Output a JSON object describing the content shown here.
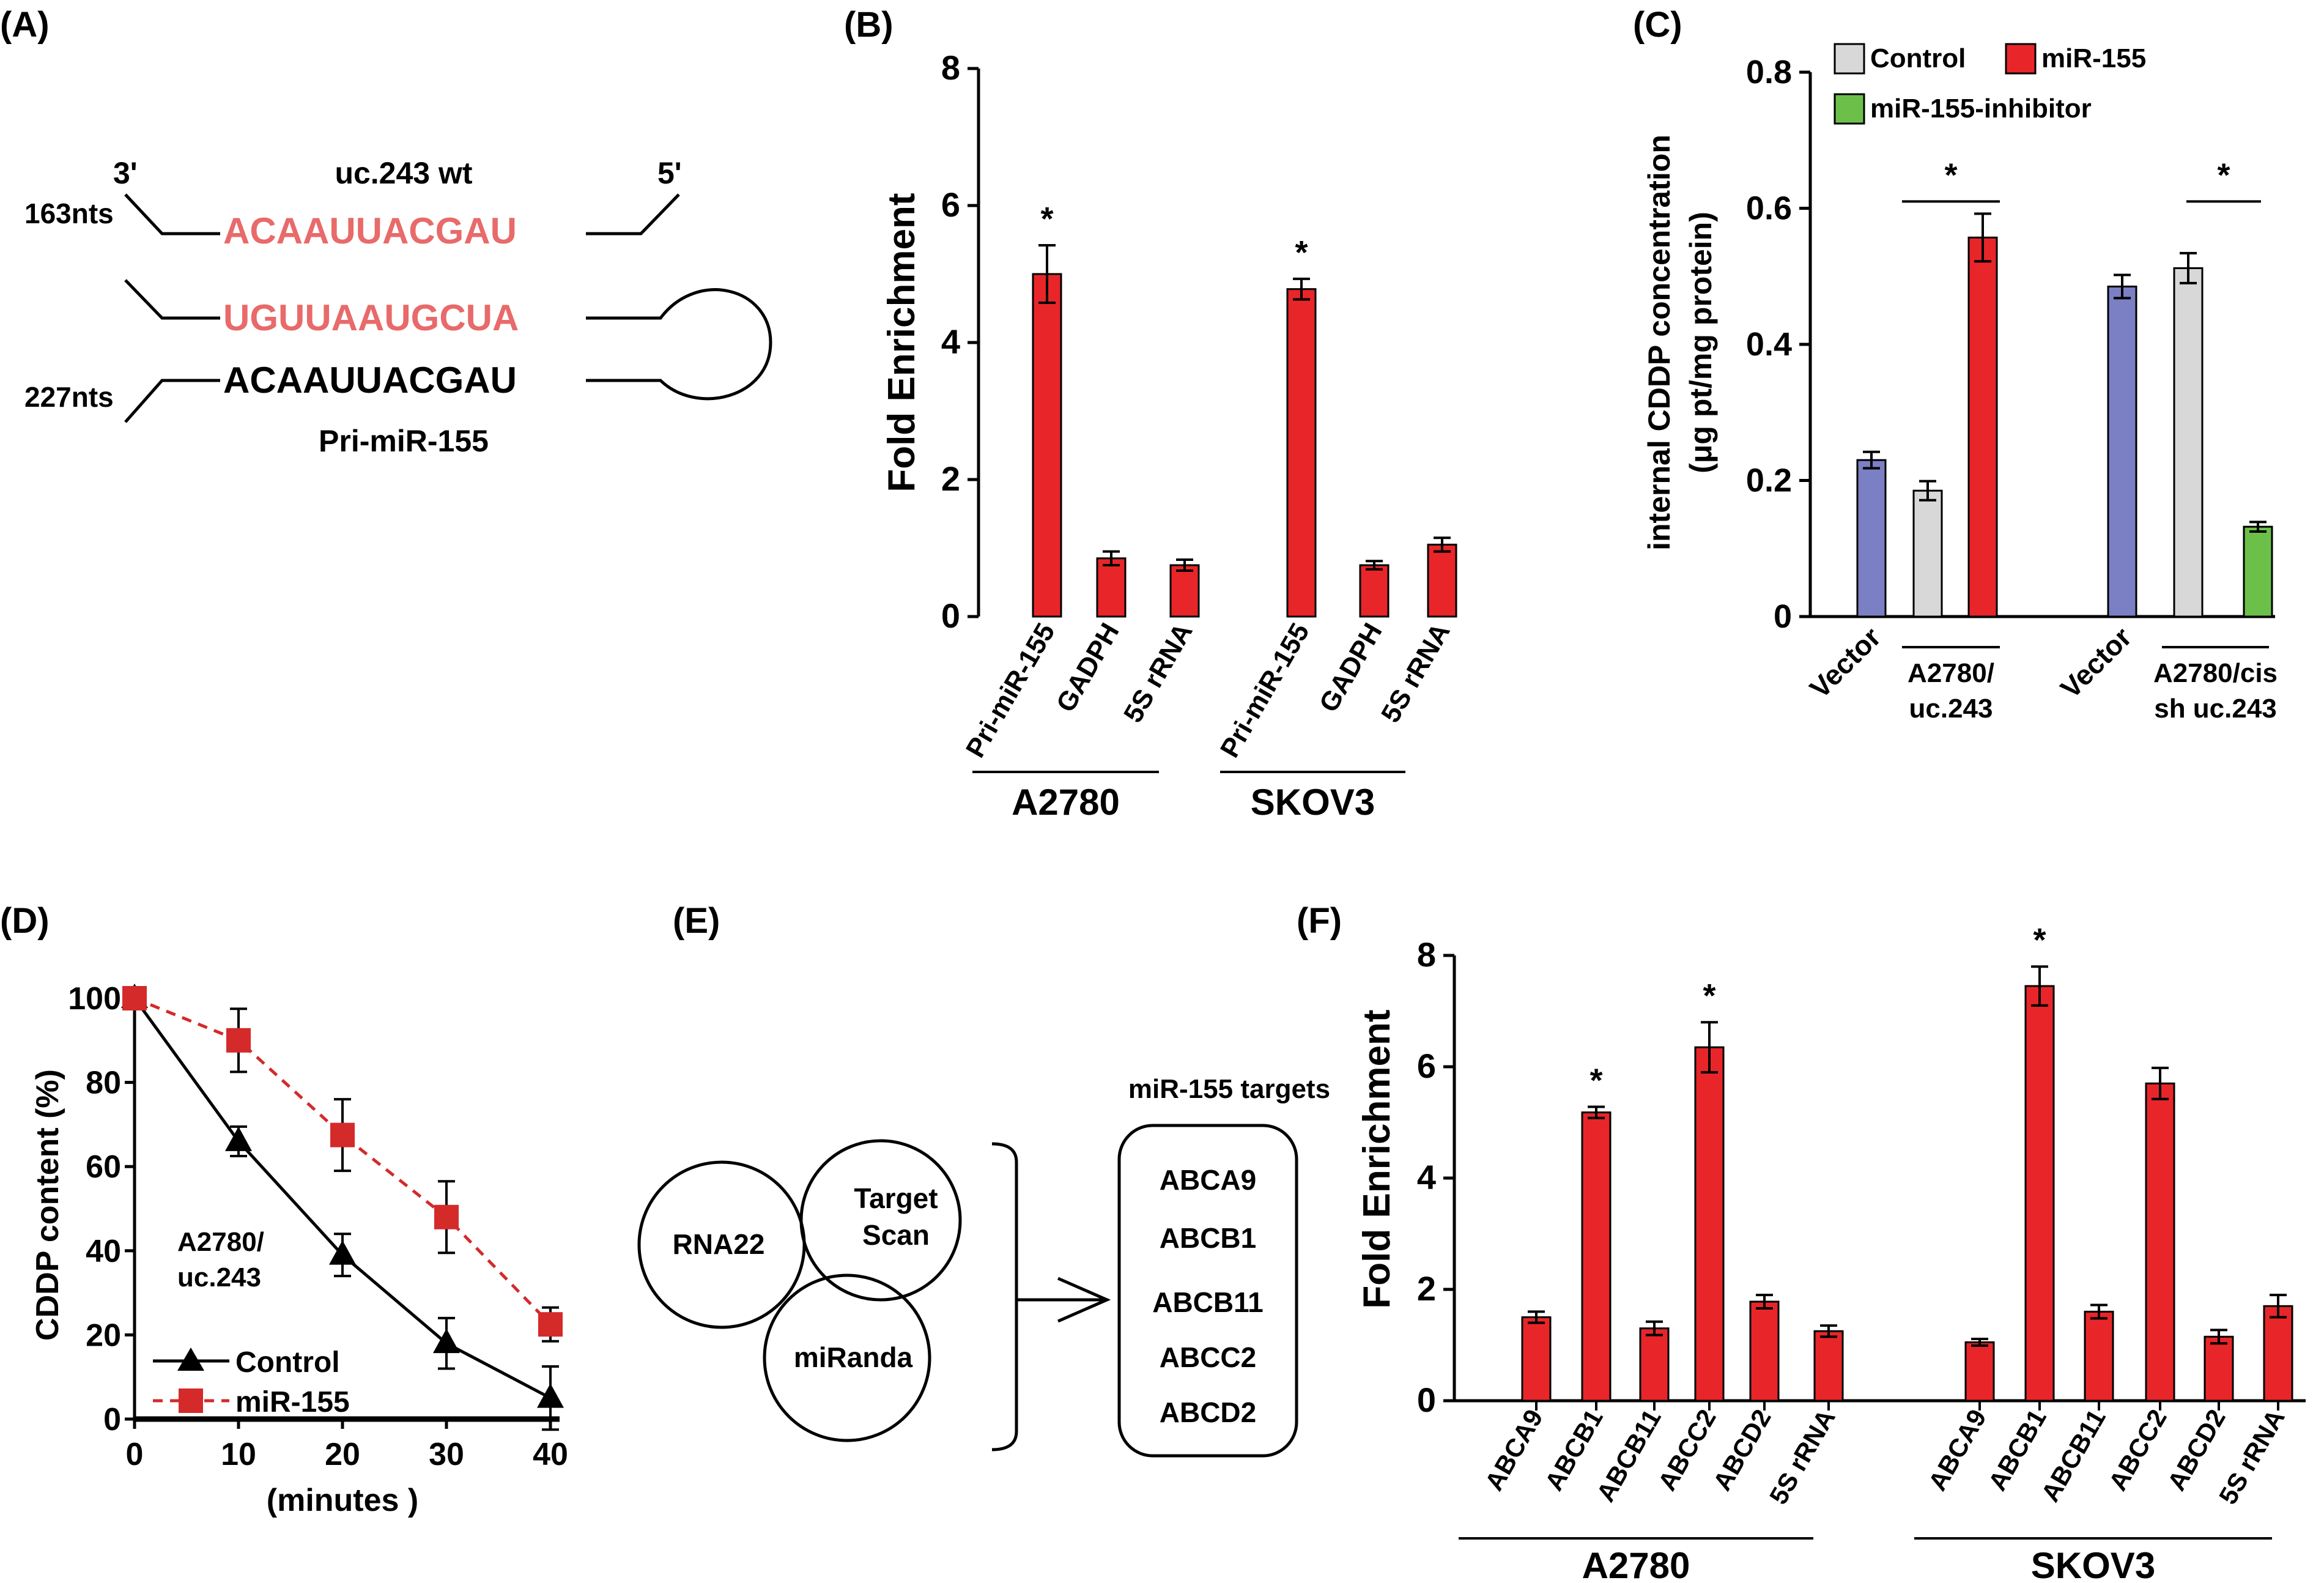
{
  "panels": {
    "A": {
      "label": "(A)",
      "title": "uc.243 wt",
      "end3": "3'",
      "end5": "5'",
      "len_top": "163nts",
      "len_bottom": "227nts",
      "seq_top": "ACAAUUACGAU",
      "seq_mid": "UGUUAAUGCUA",
      "seq_bottom": "ACAAUUACGAU",
      "caption": "Pri-miR-155",
      "colors": {
        "highlight": "#E86A6A",
        "normal": "#000000"
      }
    },
    "E": {
      "label": "(E)",
      "venn": [
        "RNA22",
        "Target",
        "Scan",
        "miRanda"
      ],
      "targets_title": "miR-155 targets",
      "targets": [
        "ABCA9",
        "ABCB1",
        "ABCB11",
        "ABCC2",
        "ABCD2"
      ]
    }
  },
  "chart_data": [
    {
      "id": "B",
      "label": "(B)",
      "type": "bar",
      "ylabel": "Fold Enrichment",
      "ylim": [
        0,
        8
      ],
      "yticks": [
        0,
        2,
        4,
        6,
        8
      ],
      "groups": [
        {
          "name": "A2780",
          "categories": [
            "Pri-miR-155",
            "GADPH",
            "5S rRNA"
          ],
          "values": [
            5.0,
            0.85,
            0.75
          ],
          "errors": [
            0.42,
            0.1,
            0.08
          ],
          "sig": [
            true,
            false,
            false
          ]
        },
        {
          "name": "SKOV3",
          "categories": [
            "Pri-miR-155",
            "GADPH",
            "5S rRNA"
          ],
          "values": [
            4.78,
            0.75,
            1.05
          ],
          "errors": [
            0.15,
            0.06,
            0.1
          ],
          "sig": [
            true,
            false,
            false
          ]
        }
      ],
      "color": "#E8262A"
    },
    {
      "id": "C",
      "label": "(C)",
      "type": "bar",
      "ylabel": "internal CDDP concentration",
      "ylabel2": "(μg pt/mg protein)",
      "ylim": [
        0,
        0.8
      ],
      "yticks": [
        "0",
        "0.2",
        "0.4",
        "0.6",
        "0.8"
      ],
      "legend": [
        {
          "name": "Control",
          "color": "#D8D8D8"
        },
        {
          "name": "miR-155",
          "color": "#E8262A"
        },
        {
          "name": "miR-155-inhibitor",
          "color": "#6CC04A"
        }
      ],
      "vector_color": "#7B7FC4",
      "groups": [
        {
          "vector_label": "Vector",
          "name_lines": [
            "A2780/",
            "uc.243"
          ],
          "vector": 0.23,
          "vector_err": 0.012,
          "bars": [
            {
              "series": "Control",
              "value": 0.185,
              "err": 0.014
            },
            {
              "series": "miR-155",
              "value": 0.557,
              "err": 0.035
            }
          ]
        },
        {
          "vector_label": "Vector",
          "name_lines": [
            "A2780/cis",
            "sh uc.243"
          ],
          "vector": 0.485,
          "vector_err": 0.017,
          "bars": [
            {
              "series": "Control",
              "value": 0.512,
              "err": 0.022
            },
            {
              "series": "miR-155-inhibitor",
              "value": 0.132,
              "err": 0.007
            }
          ]
        }
      ],
      "sig": [
        "*",
        "*"
      ]
    },
    {
      "id": "D",
      "label": "(D)",
      "type": "line",
      "ylabel": "CDDP content (%)",
      "xlabel": "(minutes )",
      "xlim": [
        0,
        40
      ],
      "ylim": [
        0,
        100
      ],
      "xticks": [
        0,
        10,
        20,
        30,
        40
      ],
      "yticks": [
        0,
        20,
        40,
        60,
        80,
        100
      ],
      "annotation": [
        "A2780/",
        "uc.243"
      ],
      "series": [
        {
          "name": "Control",
          "x": [
            0,
            10,
            20,
            30,
            40
          ],
          "values": [
            100,
            66,
            39,
            18,
            5
          ],
          "errors": [
            0,
            3.5,
            5,
            6,
            7.5
          ],
          "color": "#000000",
          "marker": "triangle"
        },
        {
          "name": "miR-155",
          "x": [
            0,
            10,
            20,
            30,
            40
          ],
          "values": [
            100,
            90,
            67.5,
            48,
            22.5
          ],
          "errors": [
            0,
            7.5,
            8.5,
            8.5,
            4
          ],
          "color": "#D42A2A",
          "marker": "square"
        }
      ]
    },
    {
      "id": "F",
      "label": "(F)",
      "type": "bar",
      "ylabel": "Fold Enrichment",
      "ylim": [
        0,
        8
      ],
      "yticks": [
        0,
        2,
        4,
        6,
        8
      ],
      "groups": [
        {
          "name": "A2780",
          "categories": [
            "ABCA9",
            "ABCB1",
            "ABCB11",
            "ABCC2",
            "ABCD2",
            "5S rRNA"
          ],
          "values": [
            1.5,
            5.18,
            1.3,
            6.35,
            1.78,
            1.25
          ],
          "errors": [
            0.1,
            0.1,
            0.12,
            0.45,
            0.12,
            0.1
          ],
          "sig": [
            false,
            true,
            false,
            true,
            false,
            false
          ]
        },
        {
          "name": "SKOV3",
          "categories": [
            "ABCA9",
            "ABCB1",
            "ABCB11",
            "ABCC2",
            "ABCD2",
            "5S rRNA"
          ],
          "values": [
            1.05,
            7.45,
            1.6,
            5.7,
            1.15,
            1.7
          ],
          "errors": [
            0.06,
            0.35,
            0.12,
            0.28,
            0.12,
            0.2
          ],
          "sig": [
            false,
            true,
            false,
            false,
            false,
            false
          ]
        }
      ],
      "color": "#E8262A"
    }
  ]
}
